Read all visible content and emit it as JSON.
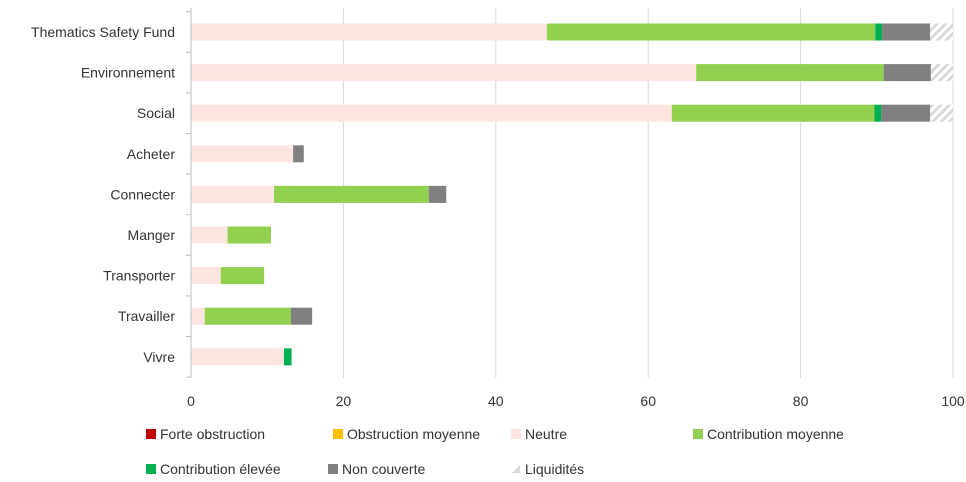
{
  "chart_data": {
    "type": "bar",
    "orientation": "horizontal",
    "stacked": true,
    "categories": [
      "Thematics Safety Fund",
      "Environnement",
      "Social",
      "Acheter",
      "Connecter",
      "Manger",
      "Transporter",
      "Travailler",
      "Vivre"
    ],
    "series": [
      {
        "name": "Forte obstruction",
        "color": "#c00000",
        "values": [
          0,
          0,
          0,
          0,
          0,
          0,
          0,
          0,
          0
        ]
      },
      {
        "name": "Obstruction moyenne",
        "color": "#ffc000",
        "values": [
          0,
          0,
          0,
          0,
          0,
          0,
          0,
          0,
          0
        ]
      },
      {
        "name": "Neutre",
        "color": "#fce4e0",
        "values": [
          46.7,
          66.3,
          63.1,
          13.4,
          10.9,
          4.8,
          3.9,
          1.8,
          12.2
        ]
      },
      {
        "name": "Contribution moyenne",
        "color": "#92d050",
        "values": [
          43.1,
          24.6,
          26.6,
          0,
          20.3,
          5.7,
          5.7,
          11.3,
          0
        ]
      },
      {
        "name": "Contribution élevée",
        "color": "#00b050",
        "values": [
          0.9,
          0,
          0.9,
          0,
          0,
          0,
          0,
          0,
          1.0
        ]
      },
      {
        "name": "Non couverte",
        "color": "#808080",
        "values": [
          6.3,
          6.2,
          6.4,
          1.4,
          2.3,
          0,
          0,
          2.8,
          0
        ]
      },
      {
        "name": "Liquidités",
        "color": "#d9d9d9",
        "pattern": "hatch",
        "values": [
          3.0,
          2.9,
          3.0,
          0,
          0,
          0,
          0,
          0,
          0
        ]
      }
    ],
    "x_ticks": [
      "0",
      "20",
      "40",
      "60",
      "80",
      "100"
    ],
    "xlim": [
      0,
      100
    ],
    "grid": true,
    "legend": "bottom",
    "title": "",
    "xlabel": "",
    "ylabel": ""
  }
}
